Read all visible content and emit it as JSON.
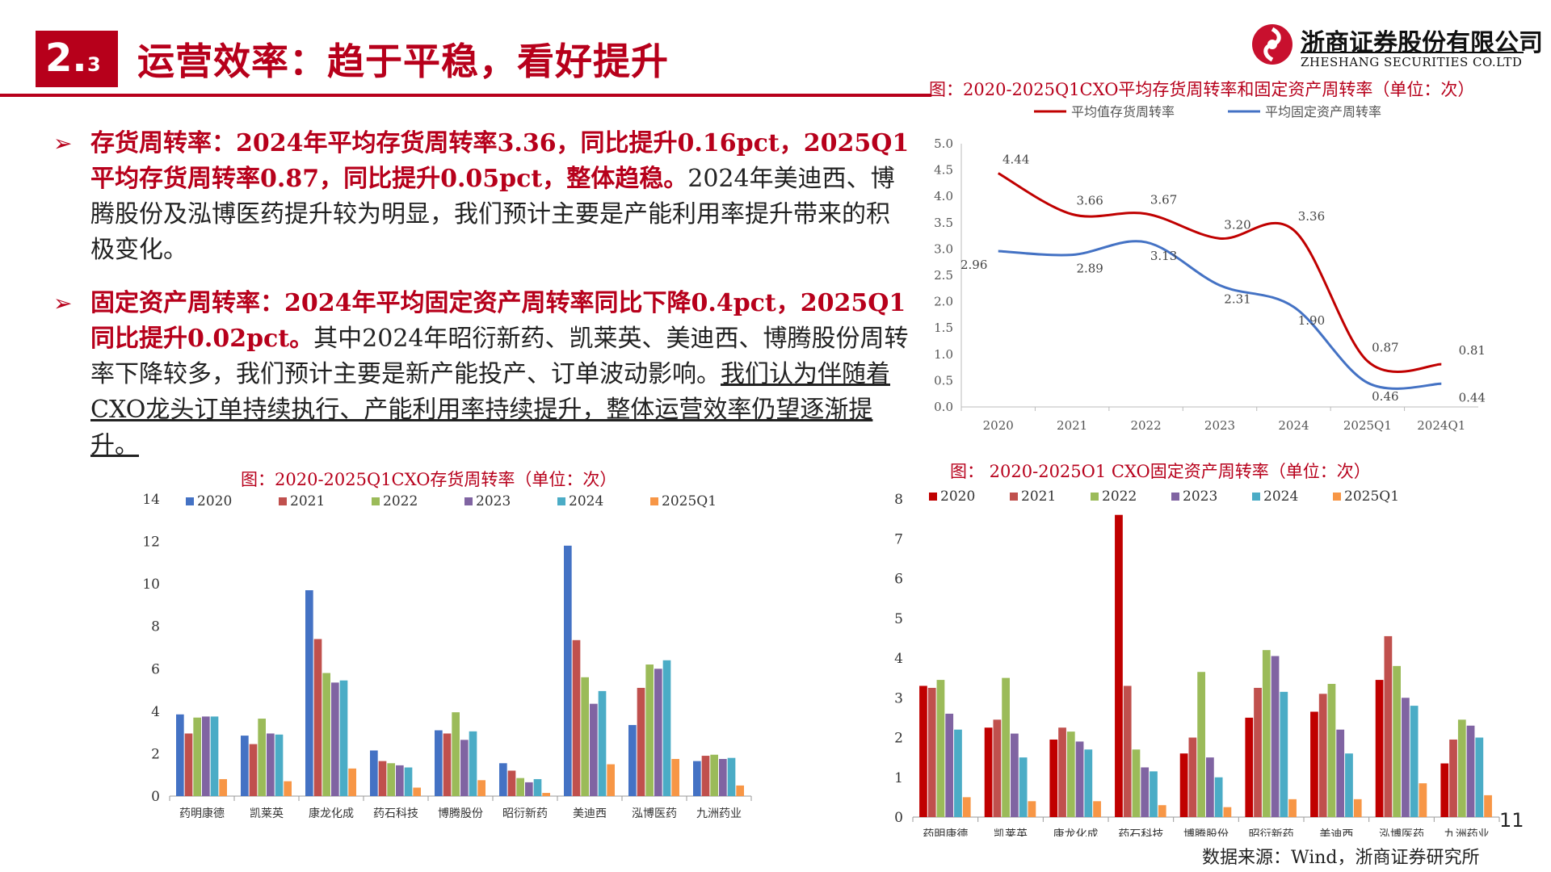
{
  "header": {
    "section_major": "2.",
    "section_minor": "3",
    "title": "运营效率：趋于平稳，看好提升"
  },
  "logo": {
    "name_cn": "浙商证券股份有限公司",
    "name_en": "ZHESHANG SECURITIES CO.LTD",
    "color": "#c8102e"
  },
  "bullets": [
    {
      "bold": "存货周转率：2024年平均存货周转率3.36，同比提升0.16pct，2025Q1平均存货周转率0.87，同比提升0.05pct，整体趋稳。",
      "normal": "2024年美迪西、博腾股份及泓博医药提升较为明显，我们预计主要是产能利用率提升带来的积极变化。",
      "underlined": ""
    },
    {
      "bold": "固定资产周转率：2024年平均固定资产周转率同比下降0.4pct，2025Q1同比提升0.02pct。",
      "normal": "其中2024年昭衍新药、凯莱英、美迪西、博腾股份周转率下降较多，我们预计主要是新产能投产、订单波动影响。",
      "underlined": "我们认为伴随着CXO龙头订单持续执行、产能利用率持续提升，整体运营效率仍望逐渐提升。"
    }
  ],
  "page_number": "11",
  "source": "数据来源：Wind，浙商证券研究所",
  "colors": {
    "accent": "#b7001b"
  },
  "chart_data": [
    {
      "type": "line",
      "title": "图：2020-2025Q1CXO平均存货周转率和固定资产周转率（单位：次）",
      "categories": [
        "2020",
        "2021",
        "2022",
        "2023",
        "2024",
        "2025Q1",
        "2024Q1"
      ],
      "ylim": [
        0,
        5
      ],
      "yticks": [
        "0.0",
        "0.5",
        "1.0",
        "1.5",
        "2.0",
        "2.5",
        "3.0",
        "3.5",
        "4.0",
        "4.5",
        "5.0"
      ],
      "legend_position": "top",
      "grid": false,
      "series": [
        {
          "name": "平均值存货周转率",
          "color": "#c00000",
          "values": [
            4.44,
            3.66,
            3.67,
            3.2,
            3.36,
            0.87,
            0.81
          ],
          "labels": [
            "4.44",
            "3.66",
            "3.67",
            "3.20",
            "3.36",
            "0.87",
            "0.81"
          ]
        },
        {
          "name": "平均固定资产周转率",
          "color": "#4472c4",
          "values": [
            2.96,
            2.89,
            3.13,
            2.31,
            1.9,
            0.46,
            0.44
          ],
          "labels": [
            "2.96",
            "2.89",
            "3.13",
            "2.31",
            "1.90",
            "0.46",
            "0.44"
          ]
        }
      ]
    },
    {
      "type": "bar",
      "title": "图：2020-2025Q1CXO存货周转率（单位：次）",
      "categories": [
        "药明康德",
        "凯莱英",
        "康龙化成",
        "药石科技",
        "博腾股份",
        "昭衍新药",
        "美迪西",
        "泓博医药",
        "九洲药业"
      ],
      "ylim": [
        0,
        14
      ],
      "yticks": [
        "0",
        "2",
        "4",
        "6",
        "8",
        "10",
        "12",
        "14"
      ],
      "legend_position": "top",
      "grid": false,
      "series": [
        {
          "name": "2020",
          "color": "#4472c4",
          "values": [
            3.85,
            2.85,
            9.7,
            2.15,
            3.1,
            1.55,
            11.8,
            3.35,
            1.65
          ]
        },
        {
          "name": "2021",
          "color": "#c0504d",
          "values": [
            2.95,
            2.45,
            7.4,
            1.65,
            2.95,
            1.2,
            7.35,
            5.1,
            1.9
          ]
        },
        {
          "name": "2022",
          "color": "#9bbb59",
          "values": [
            3.7,
            3.65,
            5.8,
            1.55,
            3.95,
            0.85,
            5.6,
            6.2,
            1.95
          ]
        },
        {
          "name": "2023",
          "color": "#8064a2",
          "values": [
            3.75,
            2.95,
            5.35,
            1.45,
            2.65,
            0.65,
            4.35,
            6.0,
            1.75
          ]
        },
        {
          "name": "2024",
          "color": "#4bacc6",
          "values": [
            3.75,
            2.9,
            5.45,
            1.35,
            3.05,
            0.8,
            4.95,
            6.4,
            1.8
          ]
        },
        {
          "name": "2025Q1",
          "color": "#f79646",
          "values": [
            0.8,
            0.7,
            1.3,
            0.4,
            0.75,
            0.15,
            1.5,
            1.75,
            0.5
          ]
        }
      ]
    },
    {
      "type": "bar",
      "title": "图： 2020-2025O1 CXO固定资产周转率（单位：次）",
      "categories": [
        "药明康德",
        "凯莱英",
        "康龙化成",
        "药石科技",
        "博腾股份",
        "昭衍新药",
        "美迪西",
        "泓博医药",
        "九洲药业"
      ],
      "ylim": [
        0,
        8
      ],
      "yticks": [
        "0",
        "1",
        "2",
        "3",
        "4",
        "5",
        "6",
        "7",
        "8"
      ],
      "legend_position": "top",
      "grid": false,
      "series": [
        {
          "name": "2020",
          "color": "#c00000",
          "values": [
            3.3,
            2.25,
            1.95,
            7.6,
            1.6,
            2.5,
            2.65,
            3.45,
            1.35
          ]
        },
        {
          "name": "2021",
          "color": "#c0504d",
          "values": [
            3.25,
            2.45,
            2.25,
            3.3,
            2.0,
            3.25,
            3.1,
            4.55,
            1.95
          ]
        },
        {
          "name": "2022",
          "color": "#9bbb59",
          "values": [
            3.45,
            3.5,
            2.15,
            1.7,
            3.65,
            4.2,
            3.35,
            3.8,
            2.45
          ]
        },
        {
          "name": "2023",
          "color": "#8064a2",
          "values": [
            2.6,
            2.1,
            1.9,
            1.25,
            1.5,
            4.05,
            2.2,
            3.0,
            2.3
          ]
        },
        {
          "name": "2024",
          "color": "#4bacc6",
          "values": [
            2.2,
            1.5,
            1.7,
            1.15,
            1.0,
            3.15,
            1.6,
            2.8,
            2.0
          ]
        },
        {
          "name": "2025Q1",
          "color": "#f79646",
          "values": [
            0.5,
            0.4,
            0.4,
            0.3,
            0.25,
            0.45,
            0.45,
            0.85,
            0.55
          ]
        }
      ]
    }
  ]
}
